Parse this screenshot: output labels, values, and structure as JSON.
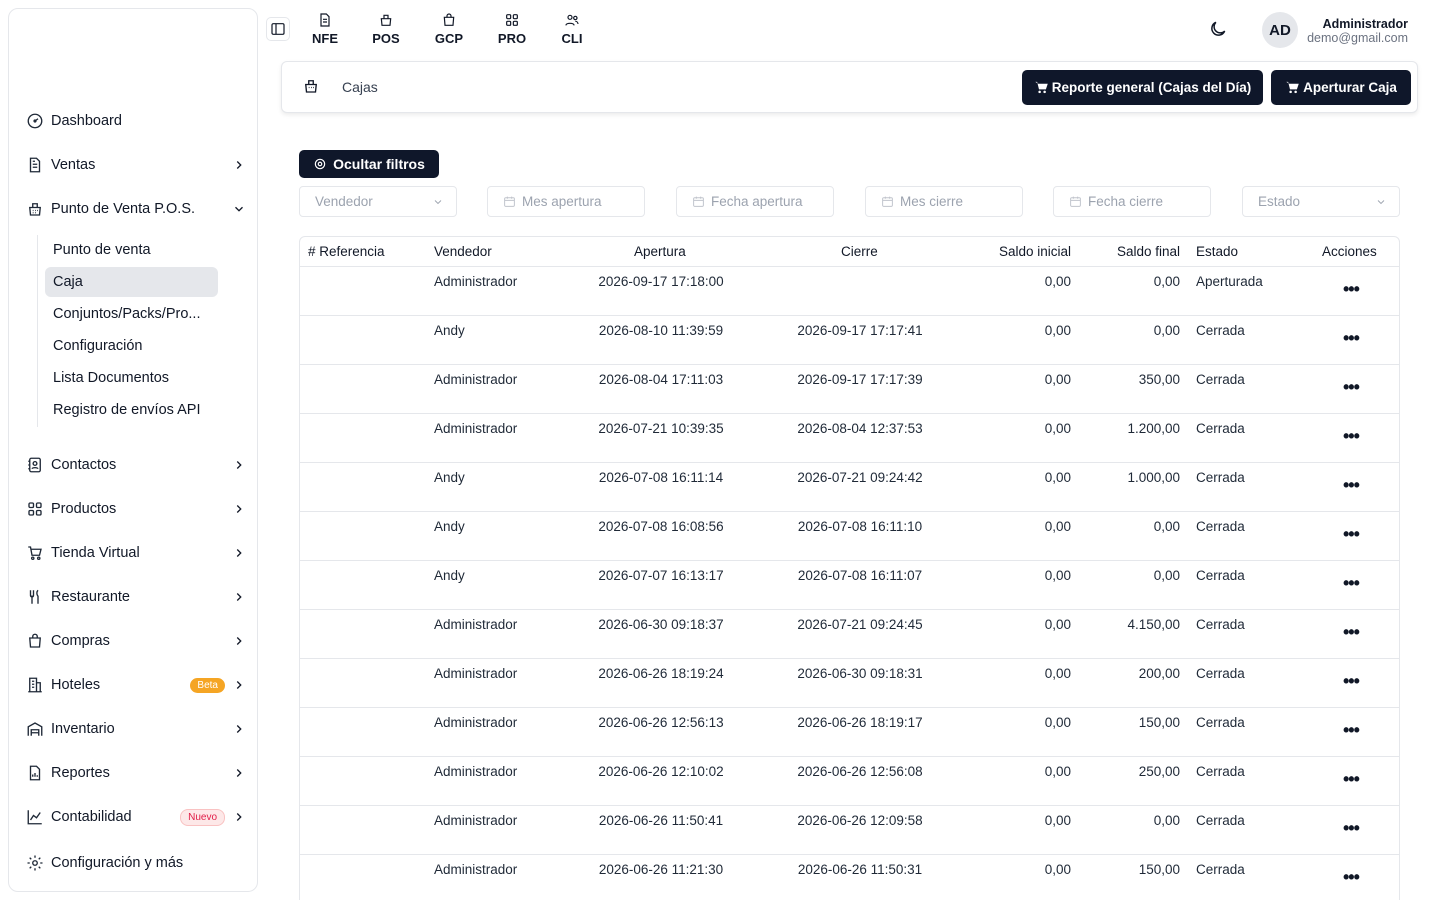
{
  "topbar": {
    "modules": [
      {
        "label": "NFE",
        "icon": "document-icon"
      },
      {
        "label": "POS",
        "icon": "pos-register-icon"
      },
      {
        "label": "GCP",
        "icon": "shopping-bag-icon"
      },
      {
        "label": "PRO",
        "icon": "grid-icon"
      },
      {
        "label": "CLI",
        "icon": "users-icon"
      }
    ],
    "user": {
      "initials": "AD",
      "name": "Administrador",
      "email": "demo@gmail.com"
    }
  },
  "sidebar": {
    "items": [
      {
        "label": "Dashboard",
        "icon": "dashboard-gauge-icon"
      },
      {
        "label": "Ventas",
        "icon": "document-icon"
      },
      {
        "label": "Punto de Venta P.O.S.",
        "icon": "pos-register-icon"
      },
      {
        "label": "Contactos",
        "icon": "contacts-icon"
      },
      {
        "label": "Productos",
        "icon": "grid-icon"
      },
      {
        "label": "Tienda Virtual",
        "icon": "cart-icon"
      },
      {
        "label": "Restaurante",
        "icon": "utensils-icon"
      },
      {
        "label": "Compras",
        "icon": "shopping-bag-icon"
      },
      {
        "label": "Hoteles",
        "icon": "hotel-icon",
        "badge": "Beta"
      },
      {
        "label": "Inventario",
        "icon": "warehouse-icon"
      },
      {
        "label": "Reportes",
        "icon": "report-icon"
      },
      {
        "label": "Contabilidad",
        "icon": "chart-icon",
        "badge": "Nuevo"
      },
      {
        "label": "Configuración y más",
        "icon": "gear-icon"
      }
    ],
    "pos_submenu": [
      "Punto de venta",
      "Caja",
      "Conjuntos/Packs/Pro...",
      "Configuración",
      "Lista Documentos",
      "Registro de envíos API"
    ],
    "active_submenu": "Caja"
  },
  "header": {
    "title": "Cajas",
    "report_button": "Reporte general (Cajas del Día)",
    "open_button": "Aperturar Caja"
  },
  "filters": {
    "toggle_label": "Ocultar filtros",
    "vendedor_placeholder": "Vendedor",
    "mes_apertura_placeholder": "Mes apertura",
    "fecha_apertura_placeholder": "Fecha apertura",
    "mes_cierre_placeholder": "Mes cierre",
    "fecha_cierre_placeholder": "Fecha cierre",
    "estado_placeholder": "Estado"
  },
  "table": {
    "columns": {
      "referencia": "# Referencia",
      "vendedor": "Vendedor",
      "apertura": "Apertura",
      "cierre": "Cierre",
      "saldo_inicial": "Saldo inicial",
      "saldo_final": "Saldo final",
      "estado": "Estado",
      "acciones": "Acciones"
    },
    "rows": [
      {
        "referencia": "",
        "vendedor": "Administrador",
        "apertura": "2026-09-17 17:18:00",
        "cierre": "",
        "saldo_inicial": "0,00",
        "saldo_final": "0,00",
        "estado": "Aperturada",
        "acciones": "•••"
      },
      {
        "referencia": "",
        "vendedor": "Andy",
        "apertura": "2026-08-10 11:39:59",
        "cierre": "2026-09-17 17:17:41",
        "saldo_inicial": "0,00",
        "saldo_final": "0,00",
        "estado": "Cerrada",
        "acciones": "•••"
      },
      {
        "referencia": "",
        "vendedor": "Administrador",
        "apertura": "2026-08-04 17:11:03",
        "cierre": "2026-09-17 17:17:39",
        "saldo_inicial": "0,00",
        "saldo_final": "350,00",
        "estado": "Cerrada",
        "acciones": "•••"
      },
      {
        "referencia": "",
        "vendedor": "Administrador",
        "apertura": "2026-07-21 10:39:35",
        "cierre": "2026-08-04 12:37:53",
        "saldo_inicial": "0,00",
        "saldo_final": "1.200,00",
        "estado": "Cerrada",
        "acciones": "•••"
      },
      {
        "referencia": "",
        "vendedor": "Andy",
        "apertura": "2026-07-08 16:11:14",
        "cierre": "2026-07-21 09:24:42",
        "saldo_inicial": "0,00",
        "saldo_final": "1.000,00",
        "estado": "Cerrada",
        "acciones": "•••"
      },
      {
        "referencia": "",
        "vendedor": "Andy",
        "apertura": "2026-07-08 16:08:56",
        "cierre": "2026-07-08 16:11:10",
        "saldo_inicial": "0,00",
        "saldo_final": "0,00",
        "estado": "Cerrada",
        "acciones": "•••"
      },
      {
        "referencia": "",
        "vendedor": "Andy",
        "apertura": "2026-07-07 16:13:17",
        "cierre": "2026-07-08 16:11:07",
        "saldo_inicial": "0,00",
        "saldo_final": "0,00",
        "estado": "Cerrada",
        "acciones": "•••"
      },
      {
        "referencia": "",
        "vendedor": "Administrador",
        "apertura": "2026-06-30 09:18:37",
        "cierre": "2026-07-21 09:24:45",
        "saldo_inicial": "0,00",
        "saldo_final": "4.150,00",
        "estado": "Cerrada",
        "acciones": "•••"
      },
      {
        "referencia": "",
        "vendedor": "Administrador",
        "apertura": "2026-06-26 18:19:24",
        "cierre": "2026-06-30 09:18:31",
        "saldo_inicial": "0,00",
        "saldo_final": "200,00",
        "estado": "Cerrada",
        "acciones": "•••"
      },
      {
        "referencia": "",
        "vendedor": "Administrador",
        "apertura": "2026-06-26 12:56:13",
        "cierre": "2026-06-26 18:19:17",
        "saldo_inicial": "0,00",
        "saldo_final": "150,00",
        "estado": "Cerrada",
        "acciones": "•••"
      },
      {
        "referencia": "",
        "vendedor": "Administrador",
        "apertura": "2026-06-26 12:10:02",
        "cierre": "2026-06-26 12:56:08",
        "saldo_inicial": "0,00",
        "saldo_final": "250,00",
        "estado": "Cerrada",
        "acciones": "•••"
      },
      {
        "referencia": "",
        "vendedor": "Administrador",
        "apertura": "2026-06-26 11:50:41",
        "cierre": "2026-06-26 12:09:58",
        "saldo_inicial": "0,00",
        "saldo_final": "0,00",
        "estado": "Cerrada",
        "acciones": "•••"
      },
      {
        "referencia": "",
        "vendedor": "Administrador",
        "apertura": "2026-06-26 11:21:30",
        "cierre": "2026-06-26 11:50:31",
        "saldo_inicial": "0,00",
        "saldo_final": "150,00",
        "estado": "Cerrada",
        "acciones": "•••"
      }
    ]
  }
}
